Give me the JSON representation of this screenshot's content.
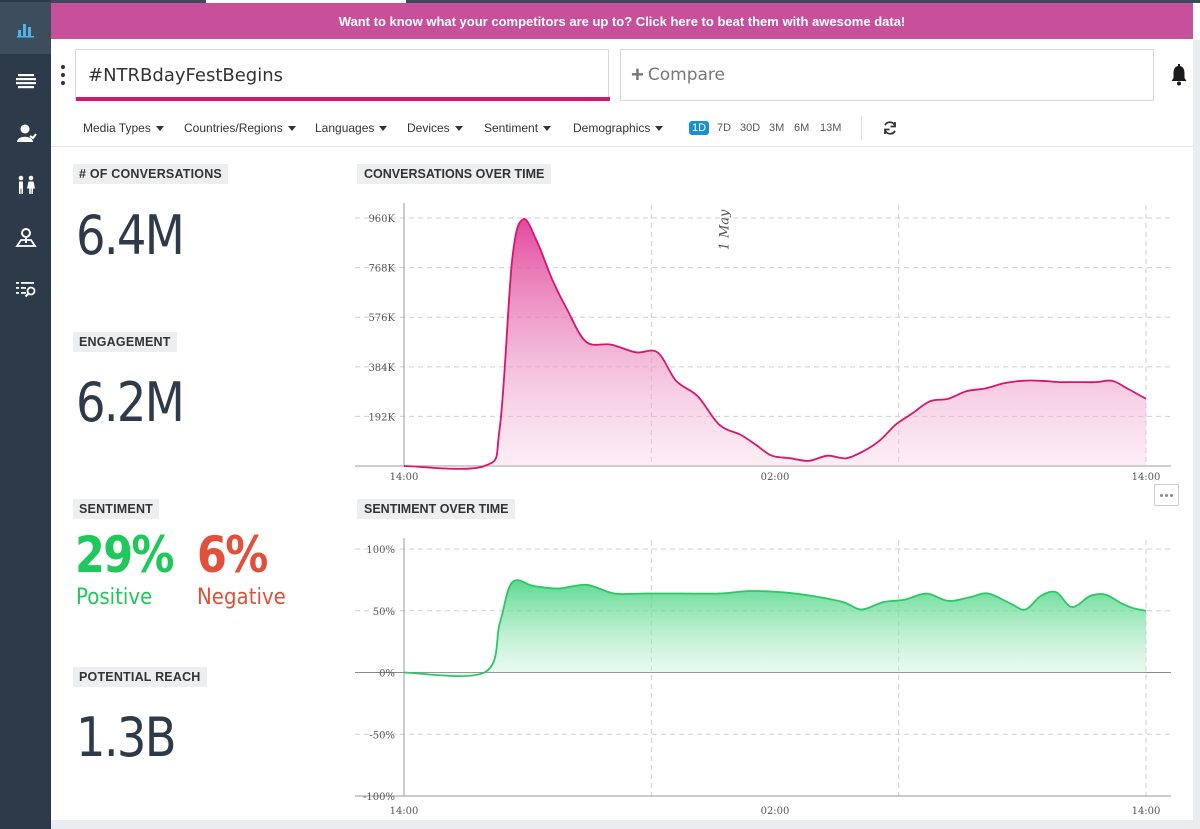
{
  "banner": {
    "text": "Want to know what your competitors are up to? Click here to beat them with awesome data!"
  },
  "sidebar": {
    "items": [
      {
        "name": "overview",
        "icon": "bar-chart-icon",
        "active": true
      },
      {
        "name": "mentions",
        "icon": "stack-icon"
      },
      {
        "name": "influencers",
        "icon": "user-icon"
      },
      {
        "name": "demographics",
        "icon": "people-icon"
      },
      {
        "name": "locations",
        "icon": "location-icon"
      },
      {
        "name": "search",
        "icon": "list-search-icon"
      }
    ]
  },
  "search": {
    "value": "#NTRBdayFestBegins",
    "compare_label": "Compare"
  },
  "filters": {
    "items": [
      "Media Types",
      "Countries/Regions",
      "Languages",
      "Devices",
      "Sentiment",
      "Demographics"
    ],
    "ranges": [
      "1D",
      "7D",
      "30D",
      "3M",
      "6M",
      "13M"
    ],
    "active_range": "1D"
  },
  "metrics": {
    "conversations": {
      "label": "# OF CONVERSATIONS",
      "value": "6.4M"
    },
    "engagement": {
      "label": "ENGAGEMENT",
      "value": "6.2M"
    },
    "sentiment": {
      "label": "SENTIMENT",
      "positive_value": "29%",
      "positive_label": "Positive",
      "negative_value": "6%",
      "negative_label": "Negative"
    },
    "reach": {
      "label": "POTENTIAL REACH",
      "value": "1.3B"
    }
  },
  "colors": {
    "accent": "#d6166c",
    "banner": "#c8509a",
    "positive": "#1fc85a",
    "negative": "#e0503a",
    "sidebar": "#2d3a4a"
  },
  "chart_data": [
    {
      "type": "area",
      "title": "CONVERSATIONS OVER TIME",
      "y_ticks": [
        "192K",
        "384K",
        "576K",
        "768K",
        "960K"
      ],
      "y_tick_values": [
        192,
        384,
        576,
        768,
        960
      ],
      "ylim": [
        0,
        1000
      ],
      "x_ticks": [
        "14:00",
        "02:00",
        "14:00"
      ],
      "x_tick_positions": [
        0,
        12,
        24
      ],
      "xlim": [
        0,
        24
      ],
      "annotation": "1 May",
      "annotation_x": 10.5,
      "color": "#d6166c",
      "points": [
        [
          0,
          0
        ],
        [
          2.6,
          0
        ],
        [
          3.1,
          150
        ],
        [
          3.5,
          800
        ],
        [
          3.85,
          955
        ],
        [
          4.3,
          870
        ],
        [
          4.8,
          720
        ],
        [
          5.3,
          600
        ],
        [
          5.9,
          480
        ],
        [
          6.7,
          470
        ],
        [
          7.5,
          440
        ],
        [
          8.2,
          440
        ],
        [
          8.8,
          330
        ],
        [
          9.5,
          270
        ],
        [
          10.2,
          160
        ],
        [
          10.9,
          120
        ],
        [
          11.4,
          80
        ],
        [
          11.9,
          40
        ],
        [
          12.5,
          30
        ],
        [
          13.1,
          20
        ],
        [
          13.7,
          40
        ],
        [
          14.3,
          30
        ],
        [
          14.9,
          60
        ],
        [
          15.4,
          100
        ],
        [
          15.9,
          160
        ],
        [
          16.4,
          200
        ],
        [
          17.0,
          250
        ],
        [
          17.6,
          260
        ],
        [
          18.2,
          290
        ],
        [
          18.8,
          300
        ],
        [
          19.4,
          320
        ],
        [
          20.0,
          330
        ],
        [
          20.6,
          330
        ],
        [
          21.2,
          325
        ],
        [
          21.8,
          325
        ],
        [
          22.4,
          325
        ],
        [
          22.9,
          330
        ],
        [
          23.4,
          300
        ],
        [
          24,
          260
        ]
      ]
    },
    {
      "type": "area",
      "title": "SENTIMENT OVER TIME",
      "y_ticks": [
        "-100%",
        "-50%",
        "0%",
        "50%",
        "100%"
      ],
      "y_tick_values": [
        -100,
        -50,
        0,
        50,
        100
      ],
      "ylim": [
        -100,
        100
      ],
      "x_ticks": [
        "14:00",
        "02:00",
        "14:00"
      ],
      "x_tick_positions": [
        0,
        12,
        24
      ],
      "xlim": [
        0,
        24
      ],
      "color": "#1fc85a",
      "points": [
        [
          0,
          0
        ],
        [
          2.6,
          0
        ],
        [
          3.1,
          40
        ],
        [
          3.5,
          73
        ],
        [
          4.2,
          70
        ],
        [
          5.0,
          68
        ],
        [
          5.9,
          71
        ],
        [
          6.8,
          64
        ],
        [
          7.8,
          64
        ],
        [
          9,
          64
        ],
        [
          10.2,
          64
        ],
        [
          11.2,
          66
        ],
        [
          12.2,
          65
        ],
        [
          13.2,
          62
        ],
        [
          14.2,
          57
        ],
        [
          14.8,
          51
        ],
        [
          15.5,
          57
        ],
        [
          16.2,
          59
        ],
        [
          16.9,
          64
        ],
        [
          17.6,
          58
        ],
        [
          18.3,
          61
        ],
        [
          18.9,
          64
        ],
        [
          19.6,
          56
        ],
        [
          20.1,
          51
        ],
        [
          20.6,
          62
        ],
        [
          21.1,
          65
        ],
        [
          21.6,
          53
        ],
        [
          22.2,
          62
        ],
        [
          22.7,
          63
        ],
        [
          23.2,
          56
        ],
        [
          23.6,
          52
        ],
        [
          24,
          50
        ]
      ]
    }
  ]
}
